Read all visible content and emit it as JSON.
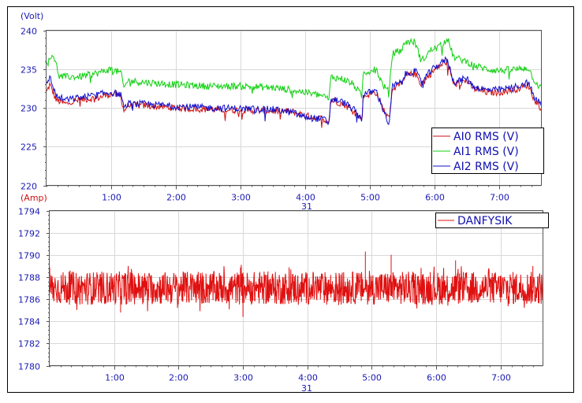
{
  "chart_data": [
    {
      "type": "line",
      "title": "",
      "ylabel": "(Volt)",
      "xlabel": "31",
      "ylim": [
        220,
        240
      ],
      "y_ticks": [
        220,
        225,
        230,
        235,
        240
      ],
      "x_range_hours": [
        0,
        7.65
      ],
      "x_ticks": [
        {
          "label": "1:00",
          "hours": 1
        },
        {
          "label": "2:00",
          "hours": 2
        },
        {
          "label": "3:00",
          "hours": 3
        },
        {
          "label": "4:00",
          "hours": 4
        },
        {
          "label": "5:00",
          "hours": 5
        },
        {
          "label": "6:00",
          "hours": 6
        },
        {
          "label": "7:00",
          "hours": 7
        }
      ],
      "x_date_label": "31",
      "legend": [
        "AI0 RMS (V)",
        "AI1 RMS (V)",
        "AI2 RMS (V)"
      ],
      "series": [
        {
          "name": "AI0 RMS (V)",
          "color": "#d01010",
          "points": [
            [
              0,
              232
            ],
            [
              0.05,
              233
            ],
            [
              0.15,
              231
            ],
            [
              0.3,
              230.5
            ],
            [
              0.5,
              231
            ],
            [
              0.8,
              231.3
            ],
            [
              1.0,
              231.8
            ],
            [
              1.15,
              231.5
            ],
            [
              1.2,
              229.5
            ],
            [
              1.25,
              230.3
            ],
            [
              1.5,
              230.3
            ],
            [
              2.0,
              230
            ],
            [
              2.5,
              229.8
            ],
            [
              3.0,
              229.7
            ],
            [
              3.5,
              229.6
            ],
            [
              3.8,
              229.5
            ],
            [
              4.0,
              229
            ],
            [
              4.3,
              228.5
            ],
            [
              4.37,
              228.3
            ],
            [
              4.4,
              231
            ],
            [
              4.6,
              230.5
            ],
            [
              4.75,
              229.5
            ],
            [
              4.88,
              228.5
            ],
            [
              4.9,
              231.5
            ],
            [
              5.1,
              232
            ],
            [
              5.2,
              230
            ],
            [
              5.3,
              228.5
            ],
            [
              5.35,
              232.5
            ],
            [
              5.5,
              233
            ],
            [
              5.55,
              234
            ],
            [
              5.7,
              234.5
            ],
            [
              5.8,
              233
            ],
            [
              5.95,
              234.5
            ],
            [
              6.1,
              235.5
            ],
            [
              6.2,
              236
            ],
            [
              6.3,
              233
            ],
            [
              6.5,
              233.5
            ],
            [
              6.6,
              232.5
            ],
            [
              6.8,
              232
            ],
            [
              7.0,
              232
            ],
            [
              7.3,
              232.5
            ],
            [
              7.45,
              233
            ],
            [
              7.55,
              231
            ],
            [
              7.65,
              230
            ]
          ]
        },
        {
          "name": "AI1 RMS (V)",
          "color": "#10d010",
          "points": [
            [
              0,
              235.5
            ],
            [
              0.1,
              237
            ],
            [
              0.2,
              234
            ],
            [
              0.5,
              234
            ],
            [
              0.8,
              234.5
            ],
            [
              1.0,
              235
            ],
            [
              1.15,
              234.5
            ],
            [
              1.2,
              232.5
            ],
            [
              1.25,
              233.5
            ],
            [
              1.5,
              233.3
            ],
            [
              2.0,
              233
            ],
            [
              2.5,
              232.8
            ],
            [
              3.0,
              232.8
            ],
            [
              3.5,
              232.6
            ],
            [
              3.8,
              232.3
            ],
            [
              4.0,
              232
            ],
            [
              4.3,
              231.5
            ],
            [
              4.37,
              231
            ],
            [
              4.4,
              234
            ],
            [
              4.6,
              233.7
            ],
            [
              4.75,
              233
            ],
            [
              4.88,
              231.5
            ],
            [
              4.9,
              234.5
            ],
            [
              5.1,
              235
            ],
            [
              5.2,
              233
            ],
            [
              5.3,
              232
            ],
            [
              5.35,
              237
            ],
            [
              5.5,
              237.5
            ],
            [
              5.55,
              238.5
            ],
            [
              5.7,
              238.5
            ],
            [
              5.8,
              236
            ],
            [
              5.95,
              237.5
            ],
            [
              6.1,
              238
            ],
            [
              6.2,
              239
            ],
            [
              6.3,
              236.5
            ],
            [
              6.5,
              236
            ],
            [
              6.6,
              235.5
            ],
            [
              6.8,
              235
            ],
            [
              7.0,
              234.8
            ],
            [
              7.3,
              235
            ],
            [
              7.45,
              235.2
            ],
            [
              7.55,
              233.5
            ],
            [
              7.65,
              232.5
            ]
          ]
        },
        {
          "name": "AI2 RMS (V)",
          "color": "#1010d0",
          "points": [
            [
              0,
              233
            ],
            [
              0.05,
              234
            ],
            [
              0.15,
              231.5
            ],
            [
              0.3,
              231
            ],
            [
              0.5,
              231.3
            ],
            [
              0.8,
              231.7
            ],
            [
              1.0,
              232
            ],
            [
              1.15,
              231.7
            ],
            [
              1.2,
              229.8
            ],
            [
              1.25,
              230.5
            ],
            [
              1.5,
              230.5
            ],
            [
              2.0,
              230.2
            ],
            [
              2.5,
              230
            ],
            [
              3.0,
              229.9
            ],
            [
              3.5,
              229.8
            ],
            [
              3.8,
              229.4
            ],
            [
              4.0,
              228.8
            ],
            [
              4.3,
              228.5
            ],
            [
              4.37,
              228
            ],
            [
              4.4,
              231.2
            ],
            [
              4.6,
              230.7
            ],
            [
              4.75,
              229.8
            ],
            [
              4.88,
              228.5
            ],
            [
              4.9,
              231.8
            ],
            [
              5.1,
              232.2
            ],
            [
              5.2,
              230
            ],
            [
              5.3,
              227.8
            ],
            [
              5.35,
              232.8
            ],
            [
              5.5,
              233.3
            ],
            [
              5.55,
              234.3
            ],
            [
              5.7,
              234.8
            ],
            [
              5.8,
              233.3
            ],
            [
              5.95,
              234.8
            ],
            [
              6.1,
              235.8
            ],
            [
              6.2,
              236.3
            ],
            [
              6.3,
              233.3
            ],
            [
              6.5,
              233.8
            ],
            [
              6.6,
              232.8
            ],
            [
              6.8,
              232.3
            ],
            [
              7.0,
              232.3
            ],
            [
              7.3,
              232.8
            ],
            [
              7.45,
              233.3
            ],
            [
              7.55,
              231.3
            ],
            [
              7.65,
              230.5
            ]
          ]
        }
      ]
    },
    {
      "type": "line",
      "title": "",
      "ylabel": "(Amp)",
      "xlabel": "31",
      "ylim": [
        1780,
        1794
      ],
      "y_ticks": [
        1780,
        1782,
        1784,
        1786,
        1788,
        1790,
        1792,
        1794
      ],
      "x_range_hours": [
        0,
        7.65
      ],
      "x_ticks": [
        {
          "label": "1:00",
          "hours": 1
        },
        {
          "label": "2:00",
          "hours": 2
        },
        {
          "label": "3:00",
          "hours": 3
        },
        {
          "label": "4:00",
          "hours": 4
        },
        {
          "label": "5:00",
          "hours": 5
        },
        {
          "label": "6:00",
          "hours": 6
        },
        {
          "label": "7:00",
          "hours": 7
        }
      ],
      "x_date_label": "31",
      "legend": [
        "DANFYSIK"
      ],
      "series": [
        {
          "name": "DANFYSIK",
          "color": "#e01010",
          "mean": 1787.0,
          "band": [
            1785.5,
            1788.5
          ],
          "spikes": [
            [
              1.1,
              1784.8
            ],
            [
              3.0,
              1784.4
            ],
            [
              4.9,
              1790.3
            ],
            [
              5.3,
              1790.0
            ],
            [
              6.3,
              1789.5
            ],
            [
              7.5,
              1789.0
            ]
          ]
        }
      ]
    }
  ]
}
